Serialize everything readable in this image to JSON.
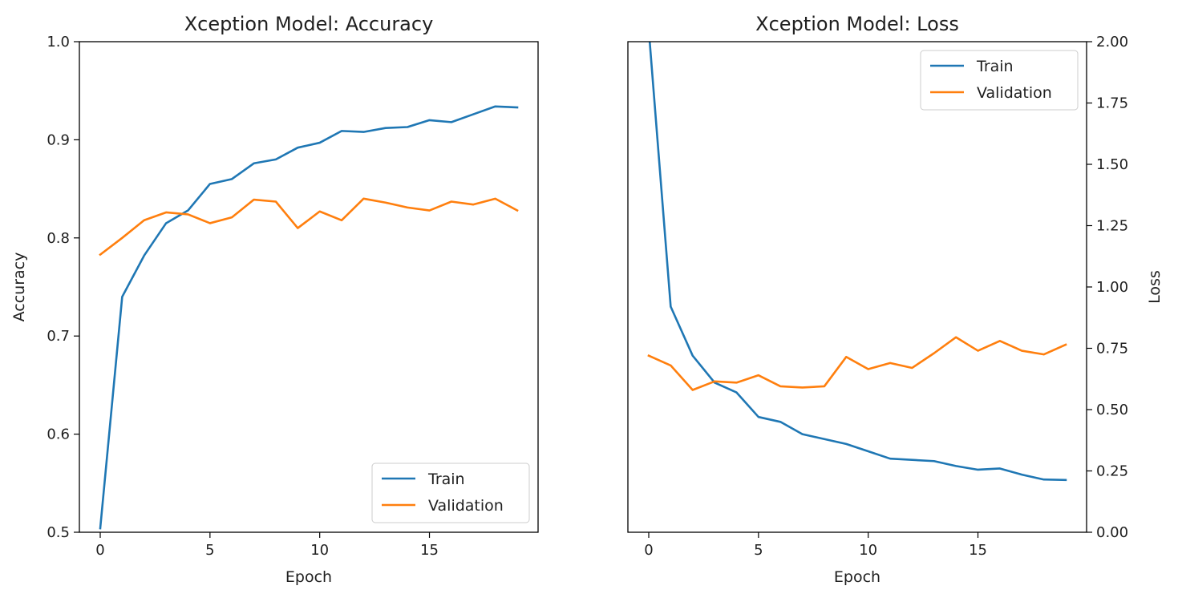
{
  "chart_data": [
    {
      "type": "line",
      "title": "Xception Model: Accuracy",
      "xlabel": "Epoch",
      "ylabel": "Accuracy",
      "xlim": [
        -0.95,
        19.95
      ],
      "ylim": [
        0.5,
        1.0
      ],
      "xticks": [
        0,
        5,
        10,
        15
      ],
      "xtick_labels": [
        "0",
        "5",
        "10",
        "15"
      ],
      "yticks": [
        0.5,
        0.6,
        0.7,
        0.8,
        0.9,
        1.0
      ],
      "ytick_labels": [
        "0.5",
        "0.6",
        "0.7",
        "0.8",
        "0.9",
        "1.0"
      ],
      "y_axis_side": "left",
      "legend_position": "lower right",
      "x": [
        0,
        1,
        2,
        3,
        4,
        5,
        6,
        7,
        8,
        9,
        10,
        11,
        12,
        13,
        14,
        15,
        16,
        17,
        18,
        19
      ],
      "series": [
        {
          "name": "Train",
          "color": "#1f77b4",
          "values": [
            0.504,
            0.74,
            0.782,
            0.815,
            0.828,
            0.855,
            0.86,
            0.876,
            0.88,
            0.892,
            0.897,
            0.909,
            0.908,
            0.912,
            0.913,
            0.92,
            0.918,
            0.926,
            0.934,
            0.933
          ]
        },
        {
          "name": "Validation",
          "color": "#ff7f0e",
          "values": [
            0.783,
            0.8,
            0.818,
            0.826,
            0.824,
            0.815,
            0.821,
            0.839,
            0.837,
            0.81,
            0.827,
            0.818,
            0.84,
            0.836,
            0.831,
            0.828,
            0.837,
            0.834,
            0.84,
            0.828
          ]
        }
      ]
    },
    {
      "type": "line",
      "title": "Xception Model: Loss",
      "xlabel": "Epoch",
      "ylabel": "Loss",
      "xlim": [
        -0.95,
        19.95
      ],
      "ylim": [
        0.0,
        2.0
      ],
      "xticks": [
        0,
        5,
        10,
        15
      ],
      "xtick_labels": [
        "0",
        "5",
        "10",
        "15"
      ],
      "yticks": [
        0.0,
        0.25,
        0.5,
        0.75,
        1.0,
        1.25,
        1.5,
        1.75,
        2.0
      ],
      "ytick_labels": [
        "0.00",
        "0.25",
        "0.50",
        "0.75",
        "1.00",
        "1.25",
        "1.50",
        "1.75",
        "2.00"
      ],
      "y_axis_side": "right",
      "legend_position": "upper right",
      "x": [
        0,
        1,
        2,
        3,
        4,
        5,
        6,
        7,
        8,
        9,
        10,
        11,
        12,
        13,
        14,
        15,
        16,
        17,
        18,
        19
      ],
      "series": [
        {
          "name": "Train",
          "color": "#1f77b4",
          "values": [
            2.05,
            0.92,
            0.72,
            0.61,
            0.57,
            0.47,
            0.45,
            0.4,
            0.38,
            0.36,
            0.33,
            0.3,
            0.295,
            0.29,
            0.27,
            0.255,
            0.26,
            0.235,
            0.215,
            0.213
          ]
        },
        {
          "name": "Validation",
          "color": "#ff7f0e",
          "values": [
            0.72,
            0.68,
            0.58,
            0.615,
            0.61,
            0.64,
            0.595,
            0.59,
            0.595,
            0.715,
            0.665,
            0.69,
            0.67,
            0.73,
            0.795,
            0.74,
            0.78,
            0.74,
            0.725,
            0.765
          ]
        }
      ]
    }
  ]
}
